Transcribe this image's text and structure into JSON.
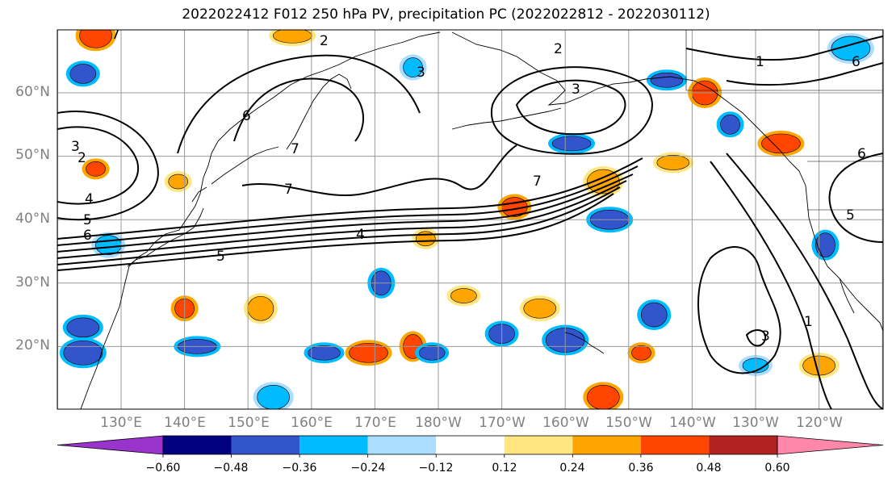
{
  "title": "2022022412 F012 250 hPa PV, precipitation PC (2022022812 - 2022030112)",
  "map": {
    "lat_labels": [
      "60°N",
      "50°N",
      "40°N",
      "30°N",
      "20°N"
    ],
    "lon_labels": [
      "130°E",
      "140°E",
      "150°E",
      "160°E",
      "170°E",
      "180°W",
      "170°W",
      "160°W",
      "150°W",
      "140°W",
      "130°W",
      "120°W"
    ],
    "pv_contour_labels": [
      "1",
      "2",
      "3",
      "4",
      "5",
      "6",
      "7"
    ],
    "shading_regions": [
      {
        "lon": 178,
        "lat": 37,
        "level": 0.3
      },
      {
        "lon": 192,
        "lat": 42,
        "level": 0.4
      },
      {
        "lon": 206,
        "lat": 46,
        "level": 0.34
      },
      {
        "lon": 201,
        "lat": 52,
        "level": -0.4
      },
      {
        "lon": 226,
        "lat": 55,
        "level": -0.45
      },
      {
        "lon": 222,
        "lat": 60,
        "level": 0.42
      },
      {
        "lon": 216,
        "lat": 62,
        "level": -0.36
      },
      {
        "lon": 207,
        "lat": 40,
        "level": -0.42
      },
      {
        "lon": 171,
        "lat": 30,
        "level": -0.36
      },
      {
        "lon": 184,
        "lat": 28,
        "level": 0.3
      },
      {
        "lon": 196,
        "lat": 26,
        "level": 0.3
      },
      {
        "lon": 200,
        "lat": 21,
        "level": -0.36
      },
      {
        "lon": 212,
        "lat": 19,
        "level": 0.4
      },
      {
        "lon": 190,
        "lat": 22,
        "level": -0.4
      },
      {
        "lon": 206,
        "lat": 12,
        "level": 0.4
      },
      {
        "lon": 142,
        "lat": 20,
        "level": -0.42
      },
      {
        "lon": 140,
        "lat": 26,
        "level": 0.38
      },
      {
        "lon": 152,
        "lat": 26,
        "level": 0.3
      },
      {
        "lon": 162,
        "lat": 19,
        "level": -0.36
      },
      {
        "lon": 169,
        "lat": 19,
        "level": 0.4
      },
      {
        "lon": 176,
        "lat": 20,
        "level": 0.36
      },
      {
        "lon": 179,
        "lat": 19,
        "level": -0.4
      },
      {
        "lon": 124,
        "lat": 23,
        "level": -0.42
      },
      {
        "lon": 124,
        "lat": 19,
        "level": -0.36
      },
      {
        "lon": 126,
        "lat": 48,
        "level": 0.36
      },
      {
        "lon": 124,
        "lat": 63,
        "level": -0.4
      },
      {
        "lon": 126,
        "lat": 69,
        "level": 0.4
      },
      {
        "lon": 157,
        "lat": 69,
        "level": 0.3
      },
      {
        "lon": 176,
        "lat": 64,
        "level": -0.3
      },
      {
        "lon": 214,
        "lat": 25,
        "level": -0.36
      },
      {
        "lon": 217,
        "lat": 49,
        "level": 0.3
      },
      {
        "lon": 234,
        "lat": 52,
        "level": 0.36
      },
      {
        "lon": 241,
        "lat": 36,
        "level": -0.36
      },
      {
        "lon": 230,
        "lat": 17,
        "level": -0.3
      },
      {
        "lon": 240,
        "lat": 17,
        "level": 0.3
      },
      {
        "lon": 245,
        "lat": 67,
        "level": -0.3
      },
      {
        "lon": 139,
        "lat": 46,
        "level": 0.3
      },
      {
        "lon": 128,
        "lat": 36,
        "level": -0.3
      },
      {
        "lon": 154,
        "lat": 12,
        "level": -0.3
      }
    ]
  },
  "colorbar": {
    "ticks": [
      "−0.60",
      "−0.48",
      "−0.36",
      "−0.24",
      "−0.12",
      "0.12",
      "0.24",
      "0.36",
      "0.48",
      "0.60"
    ],
    "colors": [
      "#9933cc",
      "#000080",
      "#3355cc",
      "#00bbff",
      "#aaddff",
      "#ffffff",
      "#ffe680",
      "#ffa500",
      "#ff4500",
      "#b22222",
      "#ff88aa"
    ]
  }
}
